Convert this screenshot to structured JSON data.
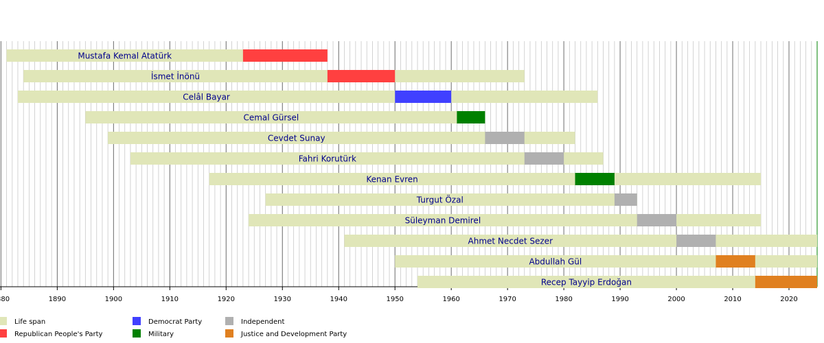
{
  "chart_data": {
    "type": "timeline",
    "categories": [
      "Mustafa Kemal Atatürk",
      "İsmet İnönü",
      "Celâl Bayar",
      "Cemal Gürsel",
      "Cevdet Sunay",
      "Fahri Korutürk",
      "Kenan Evren",
      "Turgut Özal",
      "Süleyman Demirel",
      "Ahmet Necdet Sezer",
      "Abdullah Gül",
      "Recep Tayyip Erdoğan"
    ],
    "xlim": [
      1880,
      2025
    ],
    "xticks": [
      1880,
      1890,
      1900,
      1910,
      1920,
      1930,
      1940,
      1950,
      1960,
      1970,
      1980,
      1990,
      2000,
      2010,
      2020
    ],
    "grid": true,
    "series": [
      {
        "name": "Life span",
        "color": "#e0e6b8",
        "start": [
          1881,
          1884,
          1883,
          1895,
          1899,
          1903,
          1917,
          1927,
          1924,
          1941,
          1950,
          1954
        ],
        "end": [
          1938,
          1973,
          1986,
          1966,
          1982,
          1987,
          2015,
          1993,
          2015,
          null,
          null,
          null
        ]
      },
      {
        "name": "Republican People's Party",
        "color": "#ff4040",
        "start": [
          1923,
          1938,
          null,
          null,
          null,
          null,
          null,
          null,
          null,
          null,
          null,
          null
        ],
        "end": [
          1938,
          1950,
          null,
          null,
          null,
          null,
          null,
          null,
          null,
          null,
          null,
          null
        ]
      },
      {
        "name": "Democrat Party",
        "color": "#4040ff",
        "start": [
          null,
          null,
          1950,
          null,
          null,
          null,
          null,
          null,
          null,
          null,
          null,
          null
        ],
        "end": [
          null,
          null,
          1960,
          null,
          null,
          null,
          null,
          null,
          null,
          null,
          null,
          null
        ]
      },
      {
        "name": "Military",
        "color": "#008000",
        "start": [
          null,
          null,
          null,
          1961,
          null,
          null,
          1982,
          null,
          null,
          null,
          null,
          null
        ],
        "end": [
          null,
          null,
          null,
          1966,
          null,
          null,
          1989,
          null,
          null,
          null,
          null,
          null
        ]
      },
      {
        "name": "Independent",
        "color": "#b0b0b0",
        "start": [
          null,
          null,
          null,
          null,
          1966,
          1973,
          null,
          1989,
          1993,
          2000,
          null,
          null
        ],
        "end": [
          null,
          null,
          null,
          null,
          1973,
          1980,
          null,
          1993,
          2000,
          2007,
          null,
          null
        ]
      },
      {
        "name": "Justice and Development Party",
        "color": "#e08020",
        "start": [
          null,
          null,
          null,
          null,
          null,
          null,
          null,
          null,
          null,
          null,
          2007,
          2014
        ],
        "end": [
          null,
          null,
          null,
          null,
          null,
          null,
          null,
          null,
          null,
          null,
          2014,
          null
        ]
      }
    ]
  }
}
